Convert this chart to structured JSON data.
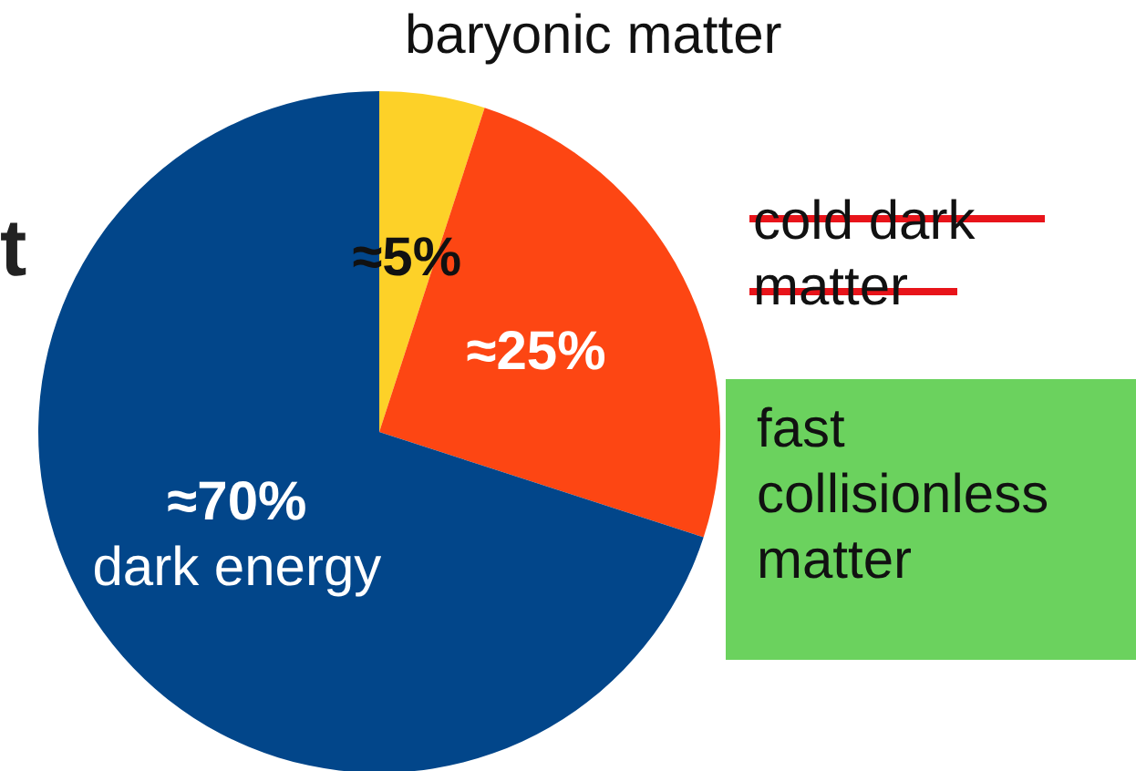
{
  "chart_data": {
    "type": "pie",
    "categories": [
      "baryonic matter",
      "cold dark matter",
      "dark energy"
    ],
    "values": [
      5,
      25,
      70
    ],
    "colors": [
      "#fdd128",
      "#fd4613",
      "#02468a"
    ],
    "value_labels": [
      "≈5%",
      "≈25%",
      "≈70%"
    ],
    "annotations": [
      "fast collisionless matter",
      "t"
    ],
    "legend": false
  }
}
